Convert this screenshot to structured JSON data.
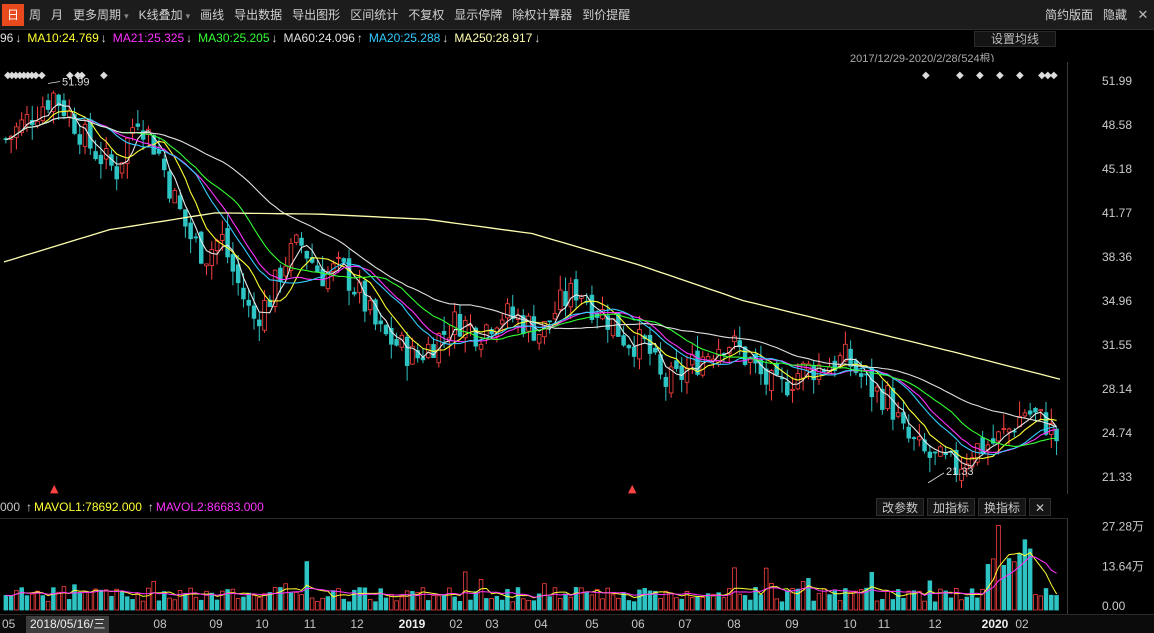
{
  "toolbar": {
    "items": [
      {
        "label": "日",
        "name": "period-day",
        "active": true
      },
      {
        "label": "周",
        "name": "period-week"
      },
      {
        "label": "月",
        "name": "period-month"
      },
      {
        "label": "更多周期",
        "name": "more-periods",
        "dropdown": true
      },
      {
        "label": "K线叠加",
        "name": "kline-overlay",
        "dropdown": true
      },
      {
        "label": "画线",
        "name": "draw-line"
      },
      {
        "label": "导出数据",
        "name": "export-data"
      },
      {
        "label": "导出图形",
        "name": "export-chart"
      },
      {
        "label": "区间统计",
        "name": "range-stats"
      },
      {
        "label": "不复权",
        "name": "no-adjust"
      },
      {
        "label": "显示停牌",
        "name": "show-suspension"
      },
      {
        "label": "除权计算器",
        "name": "ex-right-calc"
      },
      {
        "label": "到价提醒",
        "name": "price-alert"
      }
    ],
    "right": [
      {
        "label": "简约版面",
        "name": "simple-layout"
      },
      {
        "label": "隐藏",
        "name": "hide"
      }
    ],
    "close_glyph": "✕"
  },
  "ma_legend": [
    {
      "label": "96",
      "arrow": "↓",
      "color": "#e0e0e0"
    },
    {
      "label": "MA10:24.769",
      "arrow": "↓",
      "color": "#ffff33"
    },
    {
      "label": "MA21:25.325",
      "arrow": "↓",
      "color": "#ff33ff"
    },
    {
      "label": "MA30:25.205",
      "arrow": "↓",
      "color": "#33ff33"
    },
    {
      "label": "MA60:24.096",
      "arrow": "↑",
      "color": "#e0e0e0"
    },
    {
      "label": "MA20:25.288",
      "arrow": "↓",
      "color": "#33ccff"
    },
    {
      "label": "MA250:28.917",
      "arrow": "↓",
      "color": "#ffffb0"
    }
  ],
  "settings_ma_label": "设置均线",
  "range_label": "2017/12/29-2020/2/28(524根)",
  "price_axis": [
    "51.99",
    "48.58",
    "45.18",
    "41.77",
    "38.36",
    "34.96",
    "31.55",
    "28.14",
    "24.74",
    "21.33"
  ],
  "price_annotations": {
    "high": "51.99",
    "low": "21.33"
  },
  "volume": {
    "left_value": "000",
    "legend": [
      {
        "label": "MAVOL1:78692.000",
        "arrow": "↑",
        "color": "#ffff33"
      },
      {
        "label": "MAVOL2:86683.000",
        "arrow": "↑",
        "color": "#ff33ff"
      }
    ],
    "tools": [
      "改参数",
      "加指标",
      "换指标"
    ],
    "close_glyph": "✕",
    "axis": [
      "27.28万",
      "13.64万",
      "0.00"
    ]
  },
  "x_axis": {
    "left_label": "05",
    "cursor_label": "2018/05/16/三",
    "labels": [
      "08",
      "09",
      "10",
      "11",
      "12",
      "2019",
      "02",
      "03",
      "04",
      "05",
      "06",
      "07",
      "08",
      "09",
      "10",
      "11",
      "12",
      "2020",
      "02"
    ]
  },
  "colors": {
    "up": "#ff4242",
    "down": "#2ec4c4",
    "ma10": "#ffff33",
    "ma21": "#ff33ff",
    "ma30": "#33ff33",
    "ma60": "#e0e0e0",
    "ma20": "#33ccff",
    "ma250": "#ffffb0"
  },
  "chart_data": {
    "type": "candlestick",
    "y_range": [
      20.0,
      53.5
    ],
    "y_ticks": [
      51.99,
      48.58,
      45.18,
      41.77,
      38.36,
      34.96,
      31.55,
      28.14,
      24.74,
      21.33
    ],
    "high": 51.99,
    "low": 21.33,
    "trend_x": [
      0.0,
      0.02,
      0.045,
      0.06,
      0.08,
      0.105,
      0.125,
      0.145,
      0.16,
      0.175,
      0.19,
      0.205,
      0.215,
      0.235,
      0.25,
      0.265,
      0.28,
      0.3,
      0.32,
      0.34,
      0.355,
      0.375,
      0.39,
      0.41,
      0.43,
      0.45,
      0.47,
      0.49,
      0.51,
      0.525,
      0.545,
      0.56,
      0.575,
      0.59,
      0.61,
      0.625,
      0.64,
      0.66,
      0.685,
      0.7,
      0.72,
      0.735,
      0.755,
      0.78,
      0.8,
      0.815,
      0.825,
      0.84,
      0.855,
      0.875,
      0.89,
      0.905,
      0.92,
      0.94,
      0.955,
      0.97,
      0.99,
      1.0
    ],
    "trend_close": [
      47.5,
      49.0,
      51.0,
      49.5,
      47.0,
      45.0,
      49.5,
      46.5,
      43.0,
      40.0,
      38.5,
      40.0,
      37.5,
      33.5,
      35.0,
      38.0,
      39.5,
      37.0,
      37.5,
      35.0,
      32.5,
      31.5,
      30.5,
      32.0,
      33.5,
      32.5,
      34.0,
      33.5,
      32.5,
      34.5,
      36.0,
      34.5,
      33.5,
      32.0,
      31.5,
      28.5,
      29.0,
      30.5,
      32.0,
      31.0,
      29.0,
      28.0,
      29.5,
      30.0,
      30.5,
      29.0,
      28.0,
      27.5,
      24.5,
      23.0,
      22.5,
      22.0,
      23.5,
      24.0,
      25.0,
      26.5,
      25.5,
      24.3
    ],
    "ma250_x": [
      0.0,
      0.1,
      0.2,
      0.3,
      0.4,
      0.5,
      0.6,
      0.7,
      0.8,
      0.9,
      1.0
    ],
    "ma250": [
      38.0,
      40.5,
      41.8,
      41.7,
      41.3,
      40.2,
      37.8,
      35.0,
      33.0,
      31.0,
      28.9
    ],
    "volume_range": [
      0,
      272800
    ],
    "volume_ticks": [
      272800,
      136400,
      0
    ]
  }
}
